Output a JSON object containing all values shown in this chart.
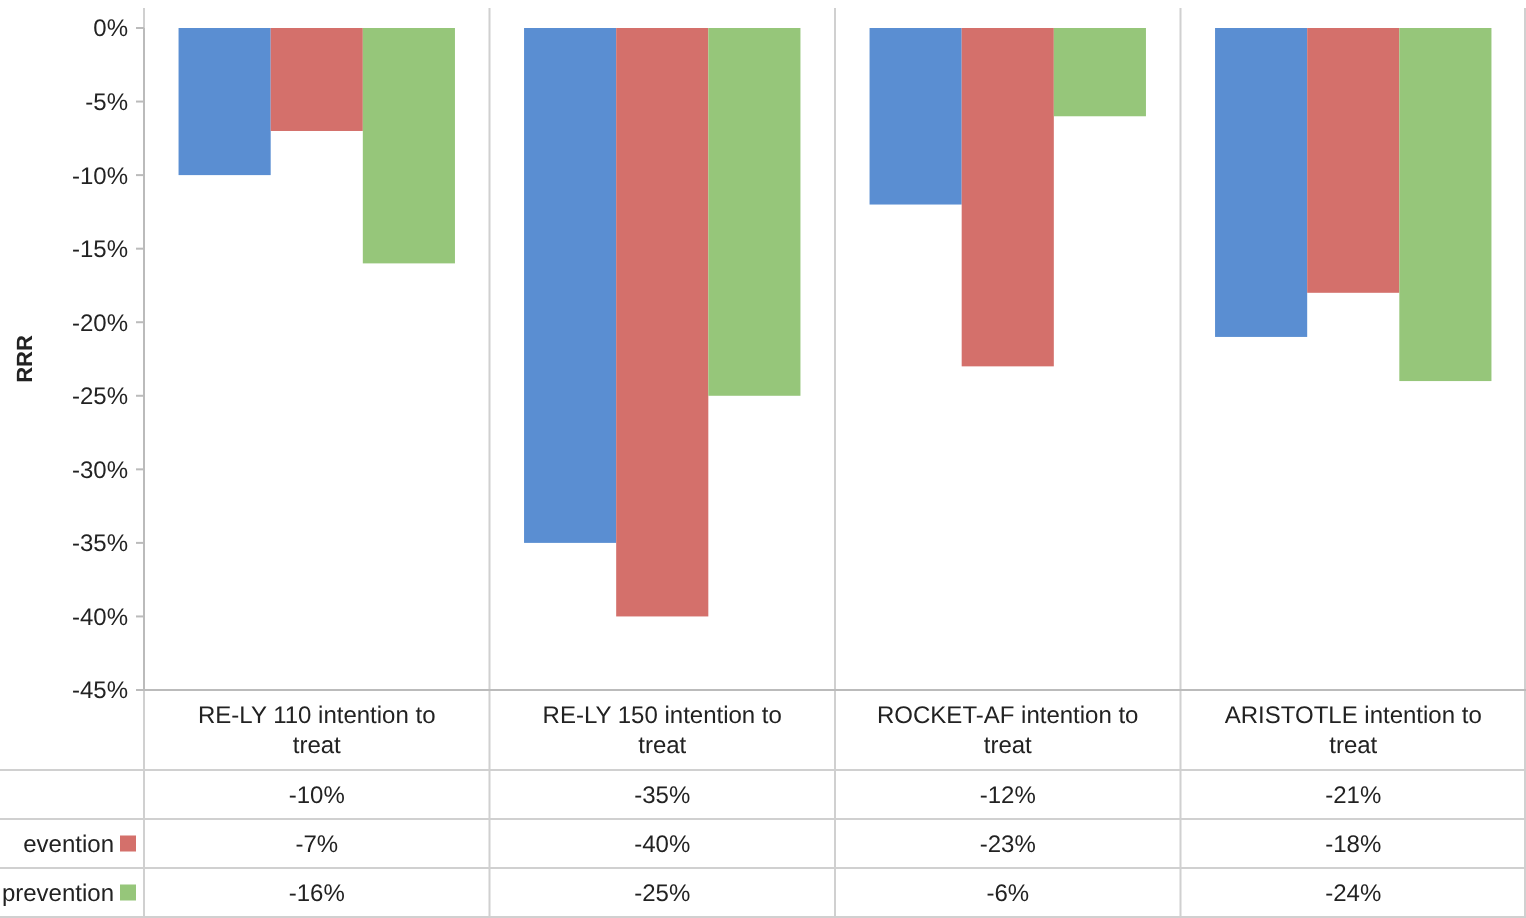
{
  "chart_data": {
    "type": "bar",
    "ylabel": "RRR",
    "categories": [
      "RE-LY 110 intention to treat",
      "RE-LY 150 intention to treat",
      "ROCKET-AF intention to treat",
      "ARISTOTLE intention to treat"
    ],
    "series": [
      {
        "color": "#5a8ed2",
        "values": [
          -10,
          -35,
          -12,
          -21
        ],
        "value_labels": [
          "-10%",
          "-35%",
          "-12%",
          "-21%"
        ]
      },
      {
        "name": "evention",
        "color": "#d4706b",
        "values": [
          -7,
          -40,
          -23,
          -18
        ],
        "value_labels": [
          "-7%",
          "-40%",
          "-23%",
          "-18%"
        ]
      },
      {
        "name": "prevention",
        "color": "#96c67a",
        "values": [
          -16,
          -25,
          -6,
          -24
        ],
        "value_labels": [
          "-16%",
          "-25%",
          "-6%",
          "-24%"
        ]
      }
    ],
    "ylim": [
      -45,
      0
    ],
    "yticks": [
      {
        "value": 0,
        "label": "0%"
      },
      {
        "value": -5,
        "label": "-5%"
      },
      {
        "value": -10,
        "label": "-10%"
      },
      {
        "value": -15,
        "label": "-15%"
      },
      {
        "value": -20,
        "label": "-20%"
      },
      {
        "value": -25,
        "label": "-25%"
      },
      {
        "value": -30,
        "label": "-30%"
      },
      {
        "value": -35,
        "label": "-35%"
      },
      {
        "value": -40,
        "label": "-40%"
      },
      {
        "value": -45,
        "label": "-45%"
      }
    ],
    "grid": false,
    "legend": "bottom left"
  }
}
